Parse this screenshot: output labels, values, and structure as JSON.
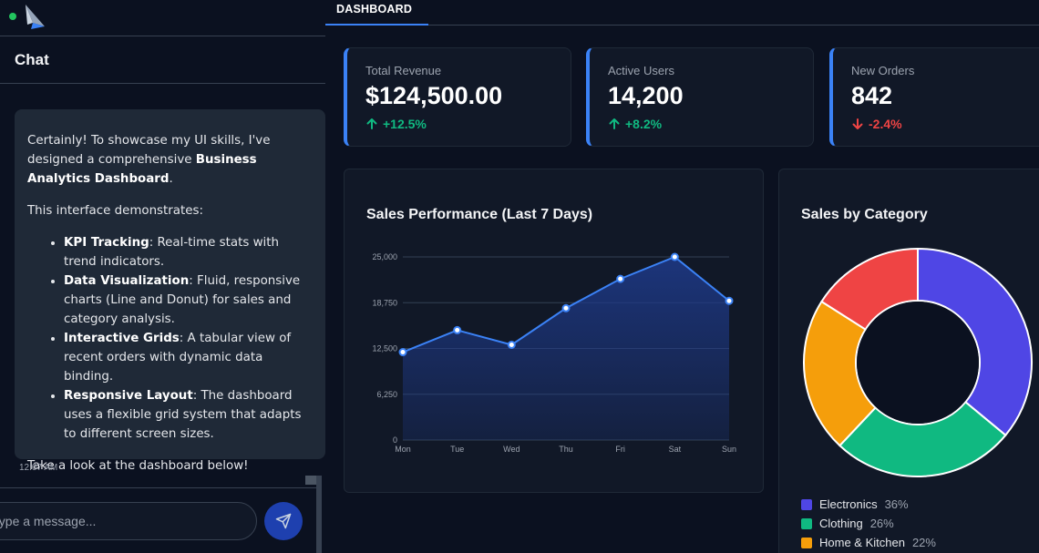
{
  "chat": {
    "title": "Chat",
    "message": {
      "intro_prefix": "Certainly! To showcase my UI skills, I've designed a comprehensive ",
      "intro_bold": "Business Analytics Dashboard",
      "intro_suffix": ".",
      "demo_line": "This interface demonstrates:",
      "bullets": [
        {
          "bold": "KPI Tracking",
          "text": ": Real-time stats with trend indicators."
        },
        {
          "bold": "Data Visualization",
          "text": ": Fluid, responsive charts (Line and Donut) for sales and category analysis."
        },
        {
          "bold": "Interactive Grids",
          "text": ": A tabular view of recent orders with dynamic data binding."
        },
        {
          "bold": "Responsive Layout",
          "text": ": The dashboard uses a flexible grid system that adapts to different screen sizes."
        }
      ],
      "closing": "Take a look at the dashboard below!",
      "time": "12:07 AM"
    },
    "input_placeholder": "Type a message...",
    "status_color": "#22c55e",
    "send_icon": "send-icon"
  },
  "dashboard": {
    "tab": "DASHBOARD",
    "kpis": [
      {
        "label": "Total Revenue",
        "value": "$124,500.00",
        "trend": "+12.5%",
        "direction": "up",
        "color": "#10b981"
      },
      {
        "label": "Active Users",
        "value": "14,200",
        "trend": "+8.2%",
        "direction": "up",
        "color": "#10b981"
      },
      {
        "label": "New Orders",
        "value": "842",
        "trend": "-2.4%",
        "direction": "down",
        "color": "#ef4444"
      }
    ],
    "accent_color": "#3b82f6"
  },
  "chart_data": [
    {
      "type": "line",
      "title": "Sales Performance (Last 7 Days)",
      "categories": [
        "Mon",
        "Tue",
        "Wed",
        "Thu",
        "Fri",
        "Sat",
        "Sun"
      ],
      "values": [
        12000,
        15000,
        13000,
        18000,
        22000,
        25000,
        19000
      ],
      "yticks": [
        "0",
        "6,250",
        "12,500",
        "18,750",
        "25,000"
      ],
      "ylim": [
        0,
        25000
      ],
      "fill": "area",
      "grid": true,
      "color": "#3b82f6"
    },
    {
      "type": "pie",
      "title": "Sales by Category",
      "donut": true,
      "slices": [
        {
          "name": "Electronics",
          "value": 36,
          "label": "36%",
          "color": "#4f46e5"
        },
        {
          "name": "Clothing",
          "value": 26,
          "label": "26%",
          "color": "#10b981"
        },
        {
          "name": "Home & Kitchen",
          "value": 22,
          "label": "22%",
          "color": "#f59e0b"
        },
        {
          "name": "",
          "value": 16,
          "label": "",
          "color": "#ef4444"
        }
      ],
      "legend_position": "bottom"
    }
  ]
}
